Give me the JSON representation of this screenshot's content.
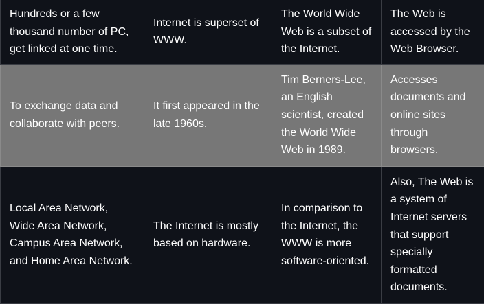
{
  "rows": [
    {
      "cells": [
        "Hundreds or a few thousand number of PC, get linked at one time.",
        "Internet is superset of WWW.",
        "The World Wide Web is a subset of the Internet.",
        "The Web is accessed by the Web Browser."
      ]
    },
    {
      "cells": [
        "To exchange data and collaborate with peers.",
        "It first appeared in the late 1960s.",
        "Tim Berners-Lee, an English scientist, created the World Wide Web in 1989.",
        "Accesses documents and online sites through browsers."
      ]
    },
    {
      "cells": [
        "Local Area Network, Wide Area Network, Campus Area Network, and Home Area Network.",
        "The Internet is mostly based on hardware.",
        "In comparison to the Internet, the WWW is more software-oriented.",
        "Also, The Web is a system of Internet servers that support specially formatted documents."
      ]
    }
  ]
}
